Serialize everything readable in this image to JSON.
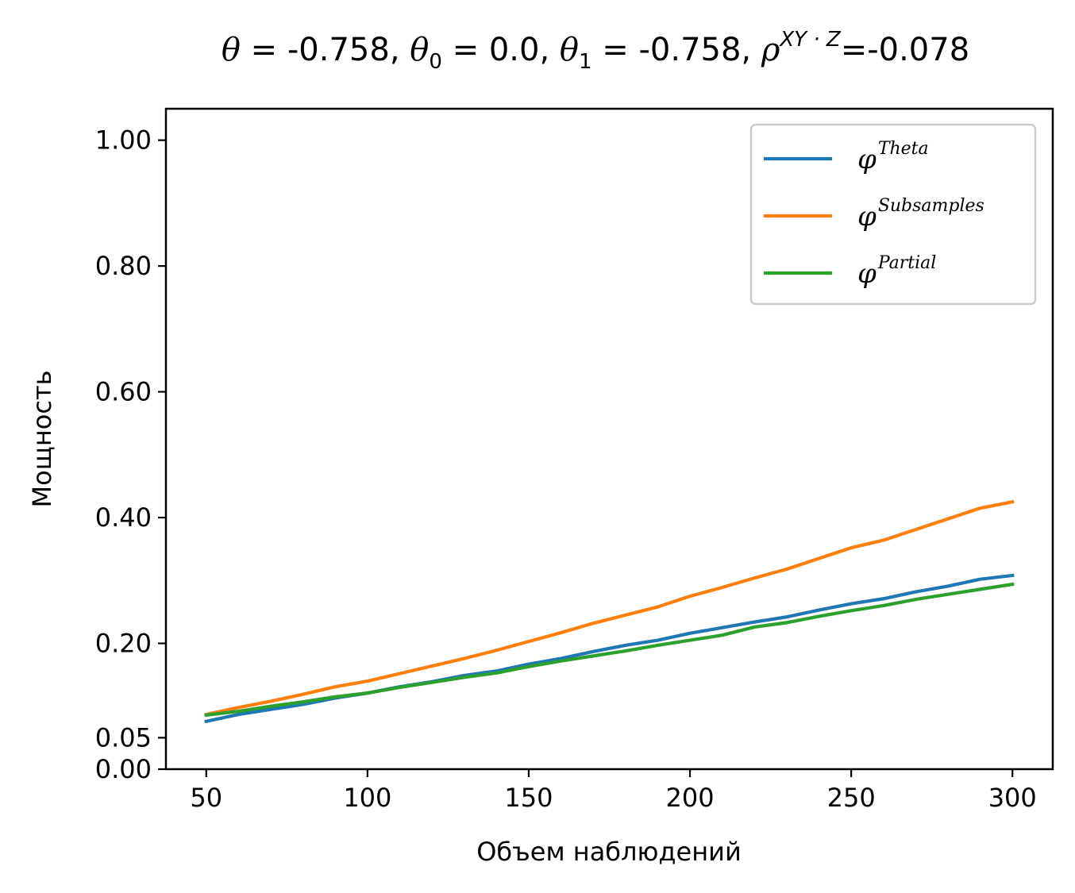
{
  "chart_data": {
    "type": "line",
    "title": "θ = -0.758, θ₀ = 0.0, θ₁ = -0.758, ρ^{XY·Z}=-0.078",
    "title_parts": {
      "theta": "θ",
      "eq1": " = -0.758, ",
      "theta0": "θ",
      "sub0": "0",
      "eq2": " = 0.0, ",
      "theta1": "θ",
      "sub1": "1",
      "eq3": " = -0.758, ",
      "rho": "ρ",
      "sup_rho": "XY · Z",
      "eq4": "=-0.078"
    },
    "xlabel": "Объем наблюдений",
    "ylabel": "Мощность",
    "xlim": [
      37.5,
      312.5
    ],
    "ylim": [
      0,
      1.05
    ],
    "xticks": [
      50,
      100,
      150,
      200,
      250,
      300
    ],
    "xtick_labels": [
      "50",
      "100",
      "150",
      "200",
      "250",
      "300"
    ],
    "yticks": [
      0.0,
      0.05,
      0.2,
      0.4,
      0.6,
      0.8,
      1.0
    ],
    "ytick_labels": [
      "0.00",
      "0.05",
      "0.20",
      "0.40",
      "0.60",
      "0.80",
      "1.00"
    ],
    "grid": false,
    "legend_position": "top-right",
    "x": [
      50,
      60,
      70,
      80,
      90,
      100,
      110,
      120,
      130,
      140,
      150,
      160,
      170,
      180,
      190,
      200,
      210,
      220,
      230,
      240,
      250,
      260,
      270,
      280,
      290,
      300
    ],
    "series": [
      {
        "name": "φ^{Theta}",
        "symbol": "φ",
        "sup": "Theta",
        "color": "#1f77b4",
        "values": [
          0.076,
          0.087,
          0.095,
          0.103,
          0.113,
          0.121,
          0.131,
          0.139,
          0.149,
          0.156,
          0.167,
          0.176,
          0.187,
          0.197,
          0.205,
          0.216,
          0.225,
          0.234,
          0.242,
          0.253,
          0.263,
          0.271,
          0.282,
          0.291,
          0.302,
          0.308
        ]
      },
      {
        "name": "φ^{Subsamples}",
        "symbol": "φ",
        "sup": "Subsamples",
        "color": "#ff7f0e",
        "values": [
          0.087,
          0.098,
          0.108,
          0.119,
          0.131,
          0.14,
          0.152,
          0.164,
          0.176,
          0.189,
          0.203,
          0.217,
          0.232,
          0.245,
          0.258,
          0.275,
          0.289,
          0.304,
          0.318,
          0.335,
          0.352,
          0.364,
          0.381,
          0.398,
          0.415,
          0.425
        ]
      },
      {
        "name": "φ^{Partial}",
        "symbol": "φ",
        "sup": "Partial",
        "color": "#2ca02c",
        "values": [
          0.086,
          0.092,
          0.1,
          0.107,
          0.115,
          0.121,
          0.13,
          0.138,
          0.146,
          0.153,
          0.163,
          0.172,
          0.18,
          0.188,
          0.197,
          0.205,
          0.213,
          0.226,
          0.233,
          0.243,
          0.252,
          0.26,
          0.27,
          0.278,
          0.286,
          0.294
        ]
      }
    ]
  }
}
